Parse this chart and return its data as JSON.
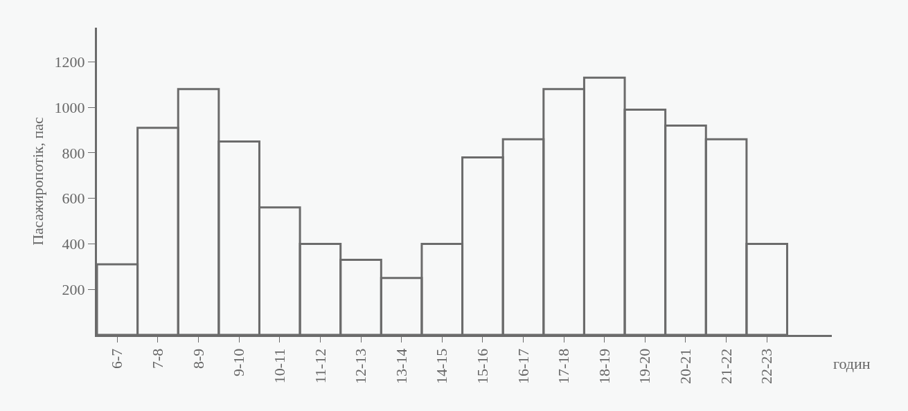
{
  "chart_data": {
    "type": "bar",
    "ylabel": "Пасажиропотік, пас",
    "xlabel": "годин",
    "categories": [
      "6-7",
      "7-8",
      "8-9",
      "9-10",
      "10-11",
      "11-12",
      "12-13",
      "13-14",
      "14-15",
      "15-16",
      "16-17",
      "17-18",
      "18-19",
      "19-20",
      "20-21",
      "21-22",
      "22-23"
    ],
    "values": [
      310,
      910,
      1080,
      850,
      560,
      400,
      330,
      250,
      400,
      780,
      860,
      1080,
      1130,
      990,
      920,
      860,
      400
    ],
    "color": "#6b6b6b",
    "ylim": [
      0,
      1350
    ],
    "yticks": [
      200,
      400,
      600,
      800,
      1000,
      1200
    ],
    "grid": false,
    "legend": false
  }
}
